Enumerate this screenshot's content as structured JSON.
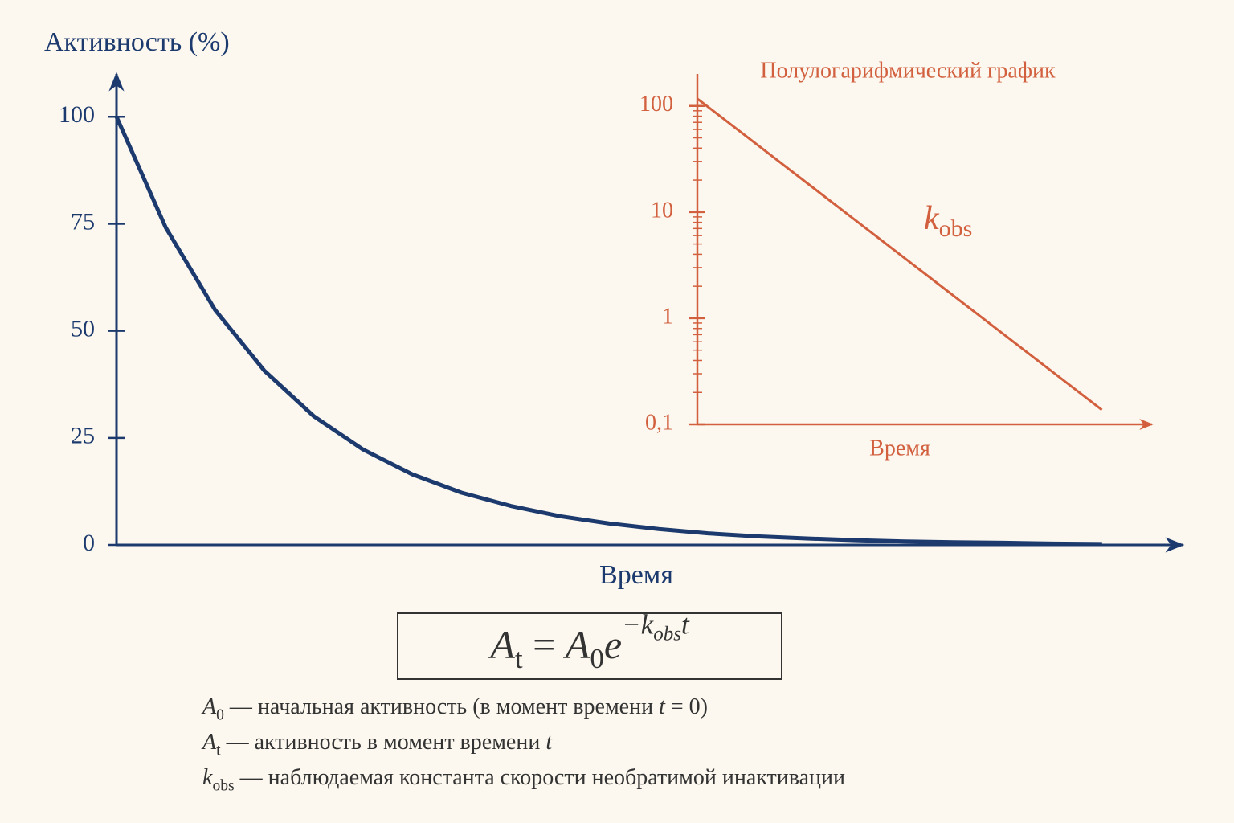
{
  "chart_data": [
    {
      "type": "line",
      "title": "Активность (%)",
      "x_label": "Время",
      "color": "#1c3a6e",
      "x": [
        0,
        0.5,
        1,
        1.5,
        2,
        2.5,
        3,
        3.5,
        4,
        4.5,
        5,
        5.5,
        6,
        6.5,
        7,
        7.5,
        8,
        8.5,
        9,
        9.5,
        10
      ],
      "values": [
        100,
        74.1,
        54.9,
        40.7,
        30.1,
        22.3,
        16.5,
        12.2,
        9.1,
        6.7,
        5.0,
        3.7,
        2.7,
        2.0,
        1.5,
        1.1,
        0.8,
        0.6,
        0.5,
        0.3,
        0.2
      ],
      "xlim": [
        0,
        10.8
      ],
      "ylim": [
        0,
        110
      ],
      "yticks": [
        0,
        25,
        50,
        75,
        100
      ]
    },
    {
      "type": "line",
      "title": "Полулогарифмический график",
      "x_label": "Время",
      "color": "#d2603f",
      "log_y": true,
      "x": [
        0,
        10
      ],
      "values": [
        117,
        0.137
      ],
      "xlim": [
        0,
        11.2
      ],
      "ylim": [
        0.1,
        200
      ],
      "yticks": [
        {
          "value": 0.1,
          "label": "0,1"
        },
        1,
        10,
        100
      ],
      "yminor": [
        0.2,
        0.3,
        0.4,
        0.5,
        0.6,
        0.7,
        0.8,
        0.9,
        2,
        3,
        4,
        5,
        6,
        7,
        8,
        9,
        20,
        30,
        40,
        50,
        60,
        70,
        80,
        90
      ],
      "annotation": {
        "symbol": "k",
        "subscript": "obs"
      }
    }
  ],
  "formula": [
    {
      "text": "A",
      "style": "italic"
    },
    {
      "text": "t",
      "style": "sub"
    },
    {
      "text": " = ",
      "style": "normal"
    },
    {
      "text": "A",
      "style": "italic"
    },
    {
      "text": "0",
      "style": "sub"
    },
    {
      "text": "e",
      "style": "italic"
    },
    {
      "text": "−k",
      "style": "sup"
    },
    {
      "text": "obs",
      "style": "supsub"
    },
    {
      "text": "t",
      "style": "sup"
    }
  ],
  "notes": [
    [
      {
        "text": "A",
        "style": "italic"
      },
      {
        "text": "0",
        "style": "sub"
      },
      {
        "text": " — начальная активность (в момент времени ",
        "style": "normal"
      },
      {
        "text": "t",
        "style": "italic"
      },
      {
        "text": " = 0)",
        "style": "normal"
      }
    ],
    [
      {
        "text": "A",
        "style": "italic"
      },
      {
        "text": "t",
        "style": "sub"
      },
      {
        "text": " — активность в момент времени ",
        "style": "normal"
      },
      {
        "text": "t",
        "style": "italic"
      }
    ],
    [
      {
        "text": "k",
        "style": "italic"
      },
      {
        "text": "obs",
        "style": "sub"
      },
      {
        "text": " — наблюдаемая константа скорости необратимой инактивации",
        "style": "normal"
      }
    ]
  ]
}
